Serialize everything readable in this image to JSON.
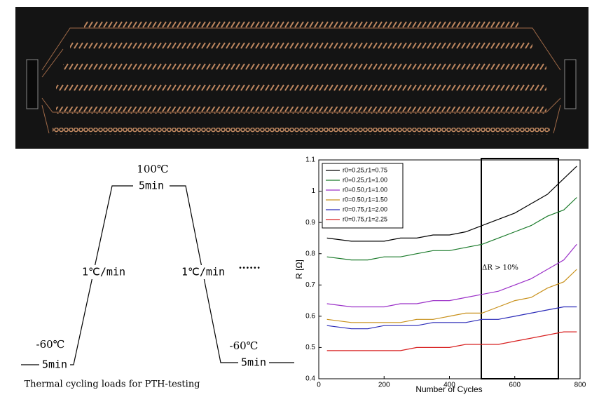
{
  "diagram": {
    "top_temp": "100℃",
    "top_hold": "5min",
    "ramp_up": "1℃/min",
    "ramp_down": "1℃/min",
    "dots": "······",
    "left_temp": "-60℃",
    "left_hold": "5min",
    "right_temp": "-60℃",
    "right_hold": "5min",
    "caption": "Thermal cycling loads for PTH-testing"
  },
  "chart_data": {
    "type": "line",
    "xlabel": "Number of Cycles",
    "ylabel": "R [Ω]",
    "annotation": "ΔR > 10%",
    "legend": "upper left",
    "x": [
      25,
      100,
      150,
      200,
      250,
      300,
      350,
      400,
      450,
      500,
      550,
      600,
      650,
      700,
      750,
      790
    ],
    "series": [
      {
        "name": "r0=0.25,r1=0.75",
        "color": "#000000",
        "values": [
          0.85,
          0.84,
          0.84,
          0.84,
          0.85,
          0.85,
          0.86,
          0.86,
          0.87,
          0.89,
          0.91,
          0.93,
          0.96,
          0.99,
          1.04,
          1.08
        ]
      },
      {
        "name": "r0=0.25,r1=1.00",
        "color": "#1a7a2a",
        "values": [
          0.79,
          0.78,
          0.78,
          0.79,
          0.79,
          0.8,
          0.81,
          0.81,
          0.82,
          0.83,
          0.85,
          0.87,
          0.89,
          0.92,
          0.94,
          0.98
        ]
      },
      {
        "name": "r0=0.50,r1=1.00",
        "color": "#9b30c8",
        "values": [
          0.64,
          0.63,
          0.63,
          0.63,
          0.64,
          0.64,
          0.65,
          0.65,
          0.66,
          0.67,
          0.68,
          0.7,
          0.72,
          0.75,
          0.78,
          0.83
        ]
      },
      {
        "name": "r0=0.50,r1=1.50",
        "color": "#c8901a",
        "values": [
          0.59,
          0.58,
          0.58,
          0.58,
          0.58,
          0.59,
          0.59,
          0.6,
          0.61,
          0.61,
          0.63,
          0.65,
          0.66,
          0.69,
          0.71,
          0.75
        ]
      },
      {
        "name": "r0=0.75,r1=2.00",
        "color": "#2a2ab8",
        "values": [
          0.57,
          0.56,
          0.56,
          0.57,
          0.57,
          0.57,
          0.58,
          0.58,
          0.58,
          0.59,
          0.59,
          0.6,
          0.61,
          0.62,
          0.63,
          0.63
        ]
      },
      {
        "name": "r0=0.75,r1=2.25",
        "color": "#d82020",
        "values": [
          0.49,
          0.49,
          0.49,
          0.49,
          0.49,
          0.5,
          0.5,
          0.5,
          0.51,
          0.51,
          0.51,
          0.52,
          0.53,
          0.54,
          0.55,
          0.55
        ]
      }
    ],
    "xlim": [
      0,
      800
    ],
    "xticks": [
      0,
      200,
      400,
      600,
      800
    ],
    "ylim": [
      0.4,
      1.1
    ],
    "yticks": [
      0.4,
      0.5,
      0.6,
      0.7,
      0.8,
      0.9,
      1,
      1.1
    ]
  }
}
